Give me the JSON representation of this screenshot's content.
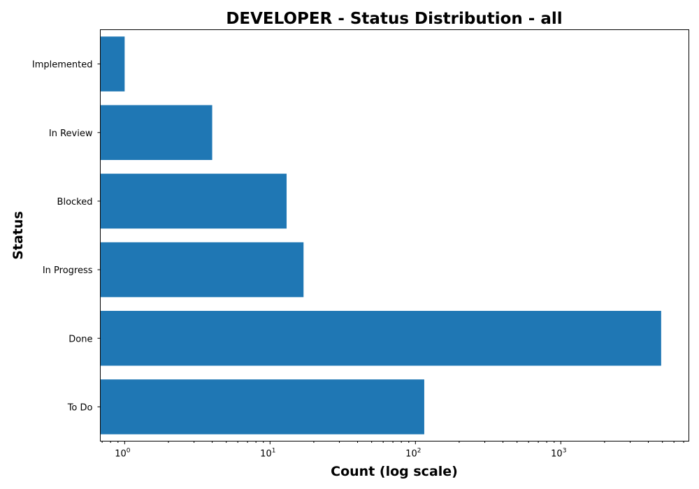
{
  "chart_data": {
    "type": "bar",
    "orientation": "horizontal",
    "title": "DEVELOPER - Status Distribution - all",
    "xlabel": "Count (log scale)",
    "ylabel": "Status",
    "x_scale": "log",
    "xlim": [
      0.68,
      7600
    ],
    "x_ticks": [
      {
        "value": 1,
        "base": "10",
        "exp": "0"
      },
      {
        "value": 10,
        "base": "10",
        "exp": "1"
      },
      {
        "value": 100,
        "base": "10",
        "exp": "2"
      },
      {
        "value": 1000,
        "base": "10",
        "exp": "3"
      }
    ],
    "categories": [
      "To Do",
      "Done",
      "In Progress",
      "Blocked",
      "In Review",
      "Implemented"
    ],
    "values": [
      115,
      4900,
      17,
      13,
      4,
      1
    ],
    "bar_color": "#1f77b4",
    "grid": false,
    "legend": "none"
  }
}
